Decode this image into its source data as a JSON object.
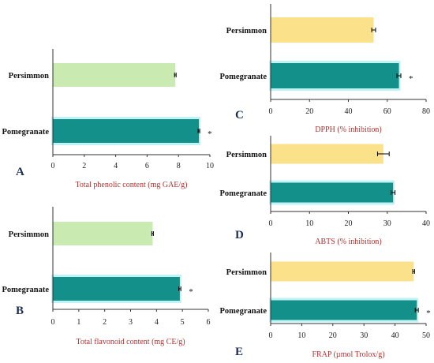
{
  "colors": {
    "persimmon_light_green": "#c9eab0",
    "pomegranate_teal": "#13908a",
    "persimmon_yellow": "#fbe28a",
    "axis": "#333333",
    "label_red": "#b03030",
    "panel_letter": "#1d2e55"
  },
  "chart_data": [
    {
      "type": "bar",
      "orientation": "horizontal",
      "panel": "A",
      "categories": [
        "Persimmon",
        "Pomegranate"
      ],
      "values": [
        7.8,
        9.3
      ],
      "errors": [
        0.05,
        0.05
      ],
      "significance": [
        "",
        "*"
      ],
      "xlabel": "Total phenolic content (mg GAE/g)",
      "xlim": [
        0,
        10
      ],
      "xticks": [
        0,
        2,
        4,
        6,
        8,
        10
      ],
      "bar_colors": [
        "#c9eab0",
        "#13908a"
      ]
    },
    {
      "type": "bar",
      "orientation": "horizontal",
      "panel": "B",
      "categories": [
        "Persimmon",
        "Pomegranate"
      ],
      "values": [
        3.85,
        4.9
      ],
      "errors": [
        0.03,
        0.04
      ],
      "significance": [
        "",
        "*"
      ],
      "xlabel": "Total flavonoid content (mg CE/g)",
      "xlim": [
        0,
        6
      ],
      "xticks": [
        0,
        1,
        2,
        3,
        4,
        5,
        6
      ],
      "bar_colors": [
        "#c9eab0",
        "#13908a"
      ]
    },
    {
      "type": "bar",
      "orientation": "horizontal",
      "panel": "C",
      "categories": [
        "Persimmon",
        "Pomegranate"
      ],
      "values": [
        53,
        66
      ],
      "errors": [
        1,
        1
      ],
      "significance": [
        "",
        "*"
      ],
      "xlabel": "DPPH (% inhibition)",
      "xlim": [
        0,
        80
      ],
      "xticks": [
        0,
        20,
        40,
        60,
        80
      ],
      "bar_colors": [
        "#fbe28a",
        "#13908a"
      ]
    },
    {
      "type": "bar",
      "orientation": "horizontal",
      "panel": "D",
      "categories": [
        "Persimmon",
        "Pomegranate"
      ],
      "values": [
        29,
        31.5
      ],
      "errors": [
        1.5,
        0.5
      ],
      "significance": [
        "",
        ""
      ],
      "xlabel": "ABTS (% inhibition)",
      "xlim": [
        0,
        40
      ],
      "xticks": [
        0,
        10,
        20,
        30,
        40
      ],
      "bar_colors": [
        "#fbe28a",
        "#13908a"
      ]
    },
    {
      "type": "bar",
      "orientation": "horizontal",
      "panel": "E",
      "categories": [
        "Persimmon",
        "Pomegranate"
      ],
      "values": [
        46,
        47
      ],
      "errors": [
        0.3,
        0.5
      ],
      "significance": [
        "",
        "*"
      ],
      "xlabel": "FRAP (µmol Trolox/g)",
      "xlim": [
        0,
        50
      ],
      "xticks": [
        0,
        10,
        20,
        30,
        40,
        50
      ],
      "bar_colors": [
        "#fbe28a",
        "#13908a"
      ]
    }
  ]
}
